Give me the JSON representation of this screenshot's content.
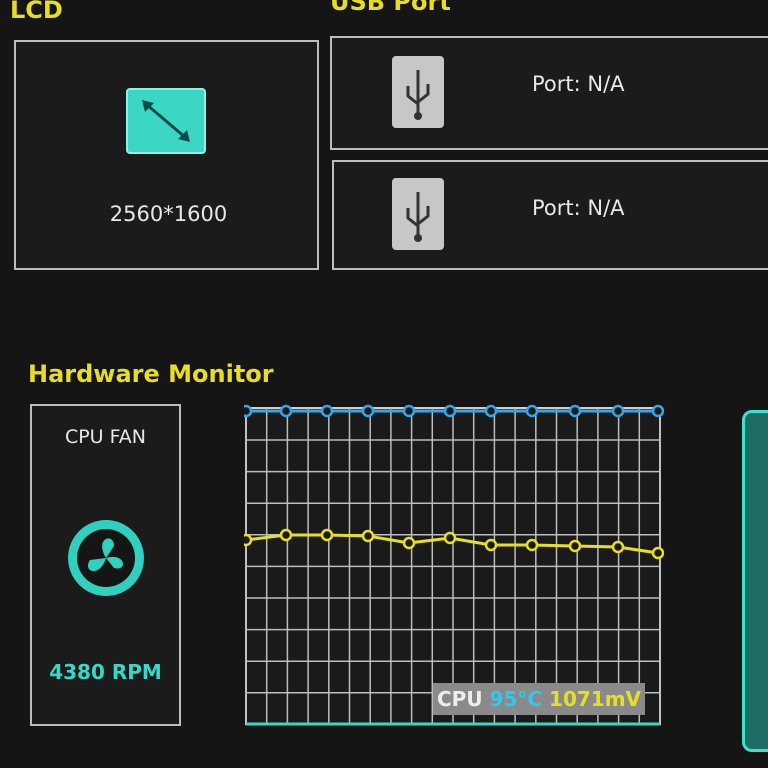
{
  "lcd": {
    "title": "LCD",
    "resolution": "2560*1600"
  },
  "usb_port": {
    "title": "USB Port",
    "ports": [
      {
        "label": "Port: N/A"
      },
      {
        "label": "Port: N/A"
      }
    ]
  },
  "hardware_monitor": {
    "title": "Hardware Monitor",
    "fan": {
      "name": "CPU FAN",
      "speed": "4380 RPM"
    },
    "readout": {
      "label": "CPU",
      "temperature": "95°C",
      "voltage": "1071mV"
    }
  }
}
